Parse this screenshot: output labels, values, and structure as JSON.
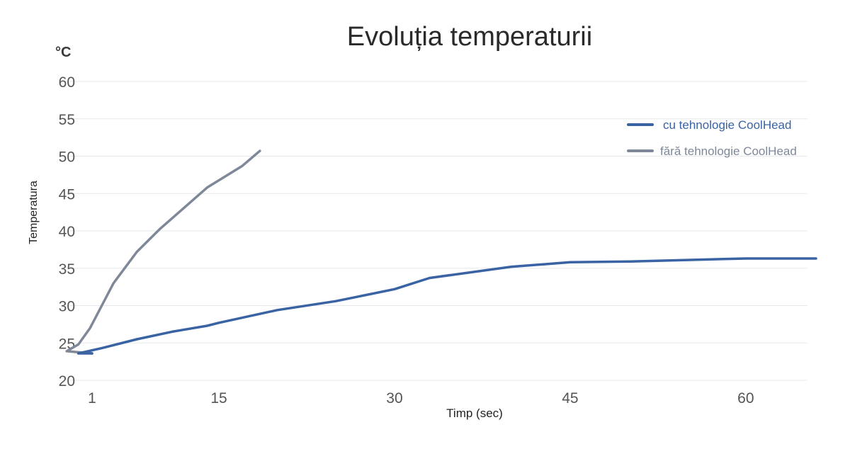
{
  "chart_data": {
    "type": "line",
    "title": "Evoluția temperaturii",
    "unit_label": "°C",
    "xlabel": "Timp (sec)",
    "ylabel": "Temperatura",
    "xticks": [
      1,
      15,
      30,
      45,
      60
    ],
    "xtick_labels": [
      "1",
      "15",
      "30",
      "45",
      "60"
    ],
    "yticks": [
      20,
      25,
      30,
      35,
      40,
      45,
      50,
      55,
      60
    ],
    "ytick_labels": [
      "20",
      "25",
      "30",
      "35",
      "40",
      "45",
      "50",
      "55",
      "60"
    ],
    "ylim": [
      20,
      60
    ],
    "grid": true,
    "legend_position": "top-right",
    "series": [
      {
        "name": "cu tehnologie CoolHead",
        "color": "#3a63a4",
        "x": [
          1,
          3,
          5,
          8,
          11,
          14,
          15,
          20,
          25,
          30,
          33,
          40,
          45,
          50,
          55,
          60,
          66
        ],
        "y": [
          23.6,
          23.6,
          24.3,
          25.5,
          26.5,
          27.3,
          27.7,
          29.4,
          30.6,
          32.2,
          33.7,
          35.2,
          35.8,
          35.9,
          36.1,
          36.3,
          36.3
        ]
      },
      {
        "name": "fără tehnologie CoolHead",
        "color": "#7f8899",
        "x": [
          1,
          2,
          3,
          4,
          5,
          6,
          8,
          10,
          14,
          17,
          18.5
        ],
        "y": [
          23.6,
          23.9,
          24.8,
          27.0,
          30.0,
          33.0,
          37.2,
          40.3,
          45.8,
          48.7,
          50.7
        ]
      }
    ]
  }
}
